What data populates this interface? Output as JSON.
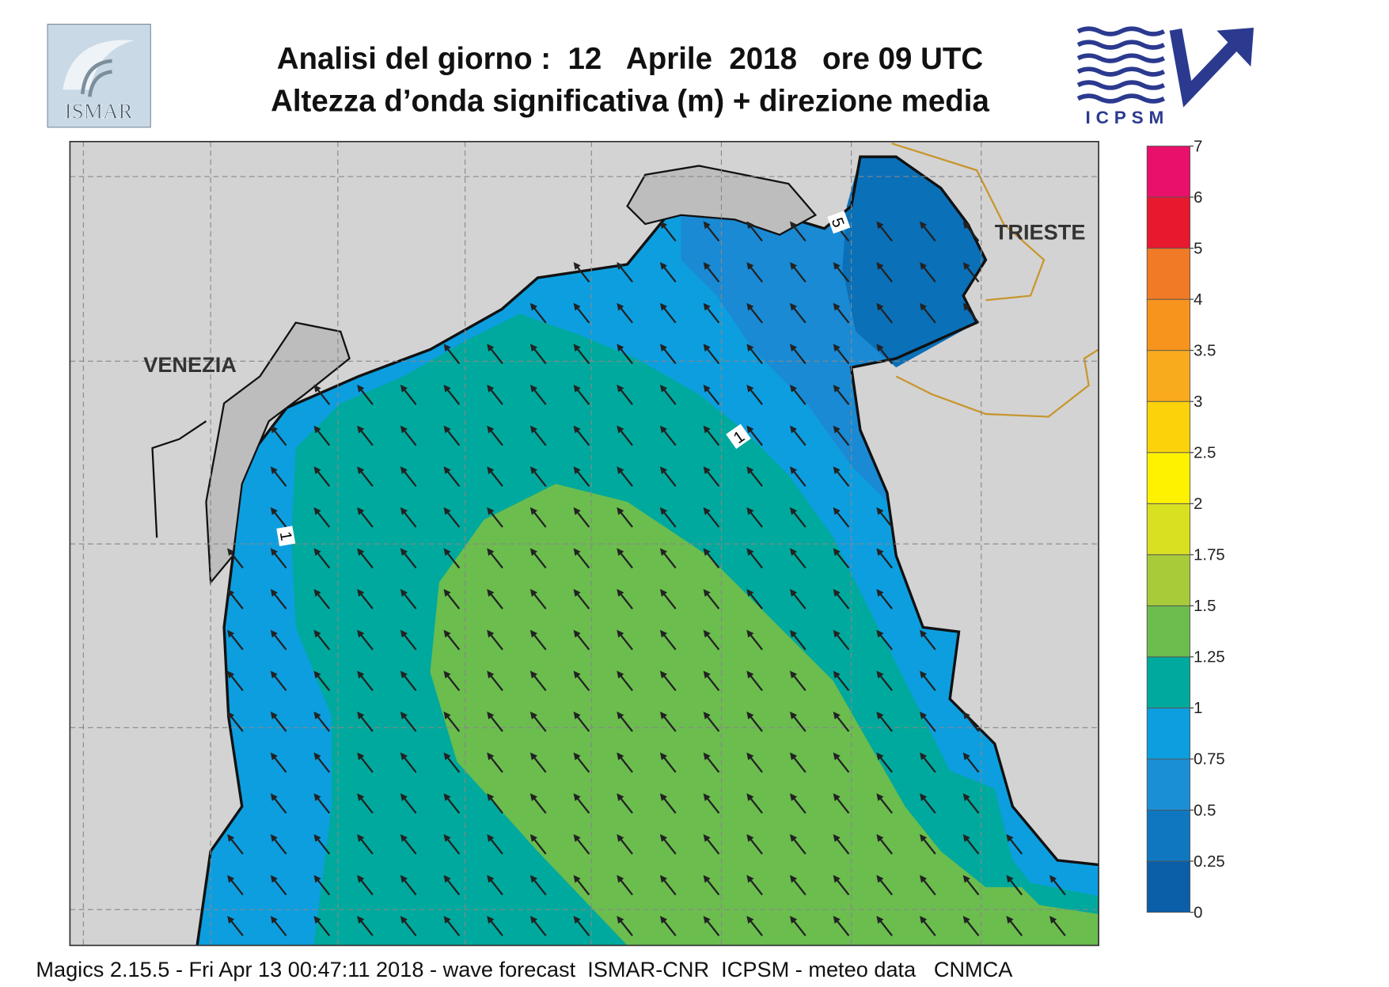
{
  "header": {
    "title_line1": "Analisi del giorno :  12   Aprile  2018   ore 09 UTC",
    "title_line2": "Altezza d’onda significativa (m) + direzione media"
  },
  "logos": {
    "left": "ISMAR",
    "right": "ICPSM"
  },
  "map": {
    "places": [
      "VENEZIA",
      "TRIESTE"
    ],
    "contour_labels": [
      "1",
      "1",
      "5"
    ]
  },
  "colorbar": {
    "levels": [
      0,
      0.25,
      0.5,
      0.75,
      1,
      1.25,
      1.5,
      1.75,
      2,
      2.5,
      3,
      3.5,
      4,
      5,
      6,
      7
    ],
    "colors": [
      "#0b5ea8",
      "#0f77c0",
      "#1b8fd6",
      "#0d9ee0",
      "#00a99d",
      "#6bbd4e",
      "#a8cb3a",
      "#d8e021",
      "#fff200",
      "#fcd20b",
      "#f9ab1e",
      "#f7941d",
      "#f07a25",
      "#e8192e",
      "#e8106a"
    ]
  },
  "footer": "Magics 2.15.5 - Fri Apr 13 00:47:11 2018 - wave forecast  ISMAR-CNR  ICPSM - meteo data   CNMCA"
}
